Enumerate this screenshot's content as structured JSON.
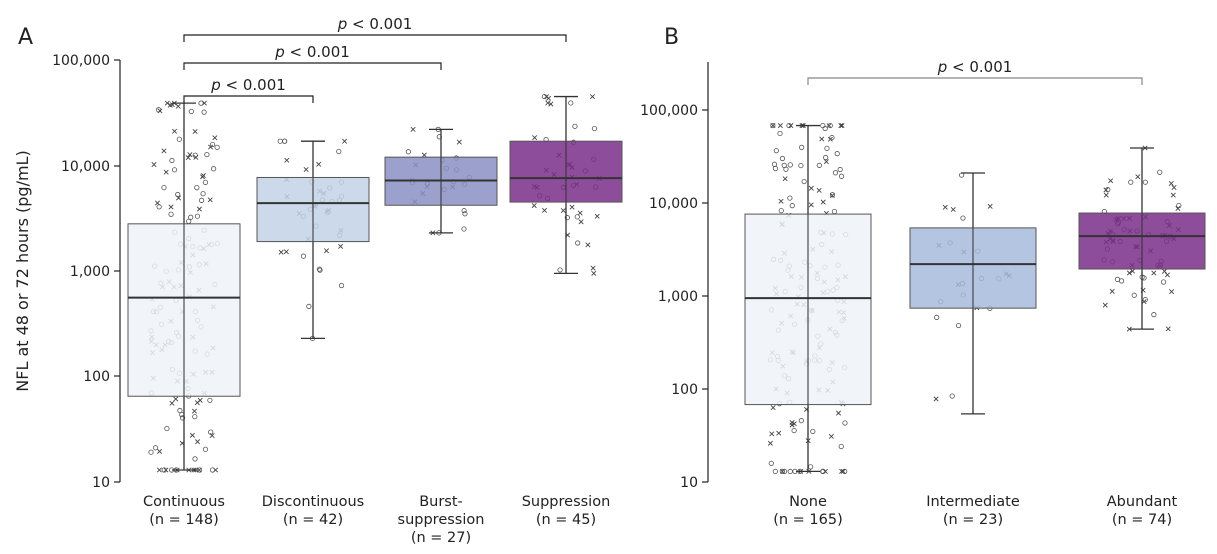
{
  "chart_data": [
    {
      "panel": "A",
      "type": "box",
      "xlabel": "",
      "ylabel": "NFL at 48 or 72 hours (pg/mL)",
      "yscale": "log",
      "ylim": [
        10,
        100000
      ],
      "yticks": [
        "10",
        "100",
        "1,000",
        "10,000",
        "100,000"
      ],
      "categories": [
        {
          "lines": [
            "Continuous",
            "(n = 148)"
          ],
          "color": "#eef3f8",
          "q1": 65,
          "median": 560,
          "q3": 2800,
          "whisker_low": 13,
          "whisker_high": 39000,
          "n": 148
        },
        {
          "lines": [
            "Discontinuous",
            "(n = 42)"
          ],
          "color": "#c3d2e7",
          "q1": 1900,
          "median": 4400,
          "q3": 7700,
          "whisker_low": 230,
          "whisker_high": 17000,
          "n": 42
        },
        {
          "lines": [
            "Burst-",
            "suppression",
            "(n = 27)"
          ],
          "color": "#8b8fc3",
          "q1": 4200,
          "median": 7200,
          "q3": 12000,
          "whisker_low": 2300,
          "whisker_high": 22000,
          "n": 27
        },
        {
          "lines": [
            "Suppression",
            "(n = 45)"
          ],
          "color": "#7a2e8a",
          "q1": 4500,
          "median": 7600,
          "q3": 17000,
          "whisker_low": 950,
          "whisker_high": 45000,
          "n": 45
        }
      ],
      "comparisons": [
        {
          "from": 0,
          "to": 1,
          "label": "p < 0.001"
        },
        {
          "from": 0,
          "to": 2,
          "label": "p < 0.001"
        },
        {
          "from": 0,
          "to": 3,
          "label": "p < 0.001"
        }
      ]
    },
    {
      "panel": "B",
      "type": "box",
      "xlabel": "",
      "ylabel": "",
      "yscale": "log",
      "ylim": [
        10,
        100000
      ],
      "yticks": [
        "10",
        "100",
        "1,000",
        "10,000",
        "100,000"
      ],
      "categories": [
        {
          "lines": [
            "None",
            "(n = 165)"
          ],
          "color": "#eef3f8",
          "q1": 68,
          "median": 950,
          "q3": 7600,
          "whisker_low": 13,
          "whisker_high": 68000,
          "n": 165
        },
        {
          "lines": [
            "Intermediate",
            "(n = 23)"
          ],
          "color": "#a7bbdc",
          "q1": 740,
          "median": 2200,
          "q3": 5400,
          "whisker_low": 54,
          "whisker_high": 21000,
          "n": 23
        },
        {
          "lines": [
            "Abundant",
            "(n = 74)"
          ],
          "color": "#7a2e8a",
          "q1": 1950,
          "median": 4400,
          "q3": 7800,
          "whisker_low": 440,
          "whisker_high": 39000,
          "n": 74
        }
      ],
      "comparisons": [
        {
          "from": 0,
          "to": 2,
          "label": "p < 0.001"
        }
      ]
    }
  ],
  "panel_labels": [
    "A",
    "B"
  ]
}
